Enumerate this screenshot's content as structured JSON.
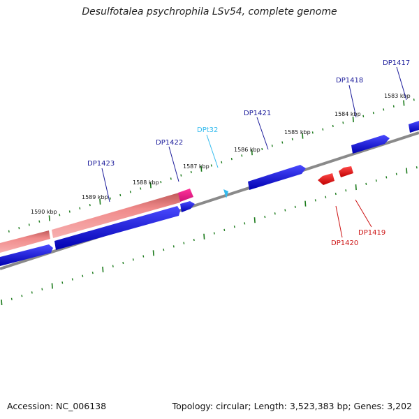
{
  "title": "Desulfotalea psychrophila LSv54, complete genome",
  "footer": {
    "accession": "Accession: NC_006138",
    "summary": "Topology: circular; Length: 3,523,383 bp; Genes: 3,202"
  },
  "colors": {
    "backbone": "#8a8a8a",
    "tick": "#1a7a1a",
    "gene_forward": "#1010dd",
    "gene_reverse": "#e01010",
    "trna": "#33bbee",
    "rrna": "#ee8888",
    "label_forward": "#1a1a9a",
    "label_reverse": "#cc1111",
    "label_trna": "#33bbee"
  },
  "scale_labels": [
    "1590 kbp",
    "1589 kbp",
    "1588 kbp",
    "1587 kbp",
    "1586 kbp",
    "1585 kbp",
    "1584 kbp",
    "1583 kbp"
  ],
  "gene_labels": [
    {
      "name": "DP1423",
      "kind": "forward"
    },
    {
      "name": "DP1422",
      "kind": "forward"
    },
    {
      "name": "DPt32",
      "kind": "trna"
    },
    {
      "name": "DP1421",
      "kind": "forward"
    },
    {
      "name": "DP1418",
      "kind": "forward"
    },
    {
      "name": "DP1417",
      "kind": "forward"
    },
    {
      "name": "DP1420",
      "kind": "reverse"
    },
    {
      "name": "DP1419",
      "kind": "reverse"
    }
  ]
}
